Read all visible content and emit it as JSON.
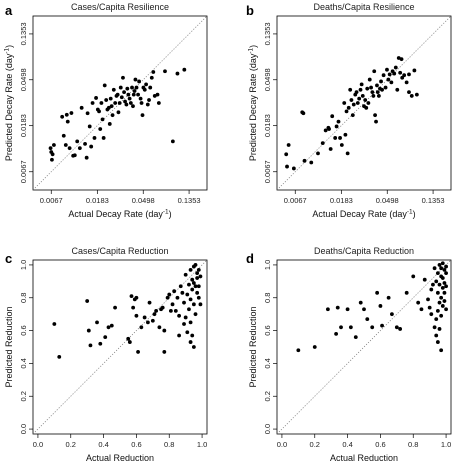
{
  "chart_data": [
    {
      "type": "scatter",
      "panel_label": "a",
      "title": "Cases/Capita Resilience",
      "xlabel": "Actual Decay Rate (day",
      "ylabel": "Predicted Decay Rate (day",
      "label_superscript": "-1",
      "label_suffix": ")",
      "scale": "log",
      "tick_values": [
        0.0067,
        0.0183,
        0.0498,
        0.1353
      ],
      "tick_labels": [
        "0.0067",
        "0.0183",
        "0.0498",
        "0.1353"
      ],
      "xlim": [
        0.0045,
        0.2
      ],
      "ylim": [
        0.0045,
        0.2
      ],
      "reference_line": "y = x",
      "points": [
        [
          0.0067,
          0.0103
        ],
        [
          0.0068,
          0.0087
        ],
        [
          0.0066,
          0.0112
        ],
        [
          0.0069,
          0.0098
        ],
        [
          0.0071,
          0.012
        ],
        [
          0.0085,
          0.0222
        ],
        [
          0.0088,
          0.0147
        ],
        [
          0.0092,
          0.012
        ],
        [
          0.0094,
          0.0232
        ],
        [
          0.0096,
          0.02
        ],
        [
          0.01,
          0.0112
        ],
        [
          0.0104,
          0.0241
        ],
        [
          0.0108,
          0.0095
        ],
        [
          0.0112,
          0.0096
        ],
        [
          0.0118,
          0.013
        ],
        [
          0.0125,
          0.0112
        ],
        [
          0.013,
          0.027
        ],
        [
          0.014,
          0.0123
        ],
        [
          0.0145,
          0.0091
        ],
        [
          0.0148,
          0.024
        ],
        [
          0.0155,
          0.018
        ],
        [
          0.016,
          0.0116
        ],
        [
          0.0165,
          0.03
        ],
        [
          0.0172,
          0.014
        ],
        [
          0.0178,
          0.0335
        ],
        [
          0.0185,
          0.026
        ],
        [
          0.019,
          0.025
        ],
        [
          0.0195,
          0.017
        ],
        [
          0.02,
          0.03
        ],
        [
          0.0205,
          0.021
        ],
        [
          0.021,
          0.014
        ],
        [
          0.0215,
          0.044
        ],
        [
          0.0222,
          0.032
        ],
        [
          0.0228,
          0.026
        ],
        [
          0.0235,
          0.027
        ],
        [
          0.024,
          0.019
        ],
        [
          0.0245,
          0.033
        ],
        [
          0.025,
          0.028
        ],
        [
          0.0255,
          0.023
        ],
        [
          0.0262,
          0.04
        ],
        [
          0.027,
          0.03
        ],
        [
          0.0278,
          0.035
        ],
        [
          0.0285,
          0.036
        ],
        [
          0.029,
          0.0245
        ],
        [
          0.0298,
          0.03
        ],
        [
          0.0305,
          0.042
        ],
        [
          0.0312,
          0.034
        ],
        [
          0.032,
          0.052
        ],
        [
          0.0328,
          0.038
        ],
        [
          0.0335,
          0.031
        ],
        [
          0.0345,
          0.029
        ],
        [
          0.0352,
          0.041
        ],
        [
          0.036,
          0.036
        ],
        [
          0.037,
          0.033
        ],
        [
          0.038,
          0.03
        ],
        [
          0.039,
          0.042
        ],
        [
          0.0398,
          0.028
        ],
        [
          0.0405,
          0.036
        ],
        [
          0.0412,
          0.039
        ],
        [
          0.042,
          0.05
        ],
        [
          0.043,
          0.042
        ],
        [
          0.0445,
          0.036
        ],
        [
          0.0455,
          0.048
        ],
        [
          0.047,
          0.033
        ],
        [
          0.048,
          0.03
        ],
        [
          0.049,
          0.023
        ],
        [
          0.05,
          0.042
        ],
        [
          0.0515,
          0.04
        ],
        [
          0.053,
          0.045
        ],
        [
          0.055,
          0.029
        ],
        [
          0.0565,
          0.032
        ],
        [
          0.058,
          0.042
        ],
        [
          0.06,
          0.052
        ],
        [
          0.062,
          0.059
        ],
        [
          0.064,
          0.035
        ],
        [
          0.068,
          0.036
        ],
        [
          0.07,
          0.03
        ],
        [
          0.08,
          0.06
        ],
        [
          0.095,
          0.013
        ],
        [
          0.105,
          0.057
        ],
        [
          0.122,
          0.062
        ]
      ]
    },
    {
      "type": "scatter",
      "panel_label": "b",
      "title": "Deaths/Capita Resilience",
      "xlabel": "Actual Decay Rate (day",
      "ylabel": "Predicted Decay Rate (day",
      "label_superscript": "-1",
      "label_suffix": ")",
      "scale": "log",
      "tick_values": [
        0.0067,
        0.0183,
        0.0498,
        0.1353
      ],
      "tick_labels": [
        "0.0067",
        "0.0183",
        "0.0498",
        "0.1353"
      ],
      "xlim": [
        0.0045,
        0.2
      ],
      "ylim": [
        0.0045,
        0.2
      ],
      "reference_line": "y = x",
      "points": [
        [
          0.0055,
          0.0098
        ],
        [
          0.0056,
          0.0075
        ],
        [
          0.0058,
          0.012
        ],
        [
          0.0065,
          0.0072
        ],
        [
          0.0078,
          0.0245
        ],
        [
          0.008,
          0.024
        ],
        [
          0.0082,
          0.0085
        ],
        [
          0.0095,
          0.0082
        ],
        [
          0.011,
          0.01
        ],
        [
          0.0122,
          0.0125
        ],
        [
          0.013,
          0.0165
        ],
        [
          0.0138,
          0.0175
        ],
        [
          0.014,
          0.017
        ],
        [
          0.0145,
          0.011
        ],
        [
          0.015,
          0.0225
        ],
        [
          0.016,
          0.014
        ],
        [
          0.0165,
          0.018
        ],
        [
          0.0172,
          0.02
        ],
        [
          0.0178,
          0.014
        ],
        [
          0.0185,
          0.012
        ],
        [
          0.0195,
          0.03
        ],
        [
          0.02,
          0.015
        ],
        [
          0.0205,
          0.025
        ],
        [
          0.021,
          0.01
        ],
        [
          0.0215,
          0.027
        ],
        [
          0.0222,
          0.04
        ],
        [
          0.0228,
          0.032
        ],
        [
          0.0235,
          0.023
        ],
        [
          0.024,
          0.029
        ],
        [
          0.0248,
          0.036
        ],
        [
          0.0255,
          0.038
        ],
        [
          0.0262,
          0.03
        ],
        [
          0.027,
          0.033
        ],
        [
          0.0278,
          0.04
        ],
        [
          0.0285,
          0.045
        ],
        [
          0.0292,
          0.035
        ],
        [
          0.03,
          0.028
        ],
        [
          0.0308,
          0.032
        ],
        [
          0.0315,
          0.027
        ],
        [
          0.0322,
          0.041
        ],
        [
          0.033,
          0.03
        ],
        [
          0.034,
          0.05
        ],
        [
          0.035,
          0.042
        ],
        [
          0.036,
          0.038
        ],
        [
          0.0368,
          0.035
        ],
        [
          0.0375,
          0.06
        ],
        [
          0.0382,
          0.023
        ],
        [
          0.039,
          0.02
        ],
        [
          0.0398,
          0.044
        ],
        [
          0.0405,
          0.038
        ],
        [
          0.0415,
          0.035
        ],
        [
          0.0425,
          0.041
        ],
        [
          0.0435,
          0.048
        ],
        [
          0.0445,
          0.04
        ],
        [
          0.046,
          0.055
        ],
        [
          0.048,
          0.042
        ],
        [
          0.0495,
          0.062
        ],
        [
          0.051,
          0.05
        ],
        [
          0.0525,
          0.056
        ],
        [
          0.0545,
          0.047
        ],
        [
          0.056,
          0.06
        ],
        [
          0.058,
          0.057
        ],
        [
          0.06,
          0.065
        ],
        [
          0.062,
          0.04
        ],
        [
          0.064,
          0.08
        ],
        [
          0.066,
          0.058
        ],
        [
          0.069,
          0.052
        ],
        [
          0.072,
          0.055
        ],
        [
          0.076,
          0.047
        ],
        [
          0.08,
          0.038
        ],
        [
          0.085,
          0.035
        ],
        [
          0.095,
          0.036
        ],
        [
          0.08,
          0.056
        ],
        [
          0.09,
          0.061
        ],
        [
          0.068,
          0.078
        ]
      ]
    },
    {
      "type": "scatter",
      "panel_label": "c",
      "title": "Cases/Capita Reduction",
      "xlabel": "Actual Reduction",
      "ylabel": "Predicted Reduction",
      "scale": "linear",
      "tick_values": [
        0.0,
        0.2,
        0.4,
        0.6,
        0.8,
        1.0
      ],
      "tick_labels": [
        "0.0",
        "0.2",
        "0.4",
        "0.6",
        "0.8",
        "1.0"
      ],
      "xlim": [
        -0.03,
        1.03
      ],
      "ylim": [
        -0.03,
        1.03
      ],
      "reference_line": "y = x",
      "points": [
        [
          0.1,
          0.64
        ],
        [
          0.13,
          0.44
        ],
        [
          0.3,
          0.78
        ],
        [
          0.31,
          0.6
        ],
        [
          0.32,
          0.51
        ],
        [
          0.36,
          0.65
        ],
        [
          0.38,
          0.52
        ],
        [
          0.41,
          0.56
        ],
        [
          0.43,
          0.62
        ],
        [
          0.45,
          0.63
        ],
        [
          0.47,
          0.74
        ],
        [
          0.55,
          0.55
        ],
        [
          0.56,
          0.53
        ],
        [
          0.57,
          0.81
        ],
        [
          0.58,
          0.74
        ],
        [
          0.59,
          0.79
        ],
        [
          0.6,
          0.8
        ],
        [
          0.6,
          0.69
        ],
        [
          0.61,
          0.47
        ],
        [
          0.63,
          0.62
        ],
        [
          0.65,
          0.68
        ],
        [
          0.67,
          0.65
        ],
        [
          0.68,
          0.77
        ],
        [
          0.7,
          0.66
        ],
        [
          0.71,
          0.7
        ],
        [
          0.72,
          0.72
        ],
        [
          0.74,
          0.62
        ],
        [
          0.75,
          0.73
        ],
        [
          0.76,
          0.74
        ],
        [
          0.77,
          0.6
        ],
        [
          0.77,
          0.47
        ],
        [
          0.79,
          0.8
        ],
        [
          0.8,
          0.82
        ],
        [
          0.81,
          0.72
        ],
        [
          0.82,
          0.76
        ],
        [
          0.83,
          0.84
        ],
        [
          0.84,
          0.72
        ],
        [
          0.85,
          0.8
        ],
        [
          0.86,
          0.69
        ],
        [
          0.86,
          0.57
        ],
        [
          0.87,
          0.87
        ],
        [
          0.88,
          0.83
        ],
        [
          0.89,
          0.64
        ],
        [
          0.89,
          0.77
        ],
        [
          0.9,
          0.94
        ],
        [
          0.9,
          0.68
        ],
        [
          0.91,
          0.82
        ],
        [
          0.91,
          0.59
        ],
        [
          0.92,
          0.88
        ],
        [
          0.92,
          0.73
        ],
        [
          0.93,
          0.97
        ],
        [
          0.93,
          0.79
        ],
        [
          0.93,
          0.65
        ],
        [
          0.94,
          0.91
        ],
        [
          0.94,
          0.85
        ],
        [
          0.94,
          0.57
        ],
        [
          0.95,
          0.99
        ],
        [
          0.95,
          0.89
        ],
        [
          0.95,
          0.76
        ],
        [
          0.96,
          1.0
        ],
        [
          0.96,
          0.87
        ],
        [
          0.96,
          0.7
        ],
        [
          0.97,
          0.95
        ],
        [
          0.97,
          0.83
        ],
        [
          0.97,
          0.92
        ],
        [
          0.98,
          0.8
        ],
        [
          0.98,
          0.97
        ],
        [
          0.98,
          0.87
        ],
        [
          0.99,
          0.93
        ],
        [
          0.99,
          0.76
        ],
        [
          0.95,
          0.5
        ],
        [
          0.93,
          0.53
        ]
      ]
    },
    {
      "type": "scatter",
      "panel_label": "d",
      "title": "Deaths/Capita Reduction",
      "xlabel": "Actual Reduction",
      "ylabel": "Predicted Reduction",
      "scale": "linear",
      "tick_values": [
        0.0,
        0.2,
        0.4,
        0.6,
        0.8,
        1.0
      ],
      "tick_labels": [
        "0.0",
        "0.2",
        "0.4",
        "0.6",
        "0.8",
        "1.0"
      ],
      "xlim": [
        -0.03,
        1.03
      ],
      "ylim": [
        -0.03,
        1.03
      ],
      "reference_line": "y = x",
      "points": [
        [
          0.1,
          0.48
        ],
        [
          0.2,
          0.5
        ],
        [
          0.28,
          0.73
        ],
        [
          0.33,
          0.58
        ],
        [
          0.34,
          0.74
        ],
        [
          0.36,
          0.62
        ],
        [
          0.4,
          0.73
        ],
        [
          0.42,
          0.62
        ],
        [
          0.45,
          0.56
        ],
        [
          0.48,
          0.77
        ],
        [
          0.5,
          0.73
        ],
        [
          0.52,
          0.67
        ],
        [
          0.55,
          0.62
        ],
        [
          0.58,
          0.83
        ],
        [
          0.6,
          0.75
        ],
        [
          0.61,
          0.63
        ],
        [
          0.65,
          0.8
        ],
        [
          0.67,
          0.7
        ],
        [
          0.7,
          0.62
        ],
        [
          0.72,
          0.61
        ],
        [
          0.76,
          0.83
        ],
        [
          0.8,
          0.93
        ],
        [
          0.83,
          0.77
        ],
        [
          0.85,
          0.73
        ],
        [
          0.87,
          0.91
        ],
        [
          0.89,
          0.79
        ],
        [
          0.9,
          0.74
        ],
        [
          0.91,
          0.7
        ],
        [
          0.91,
          0.85
        ],
        [
          0.92,
          0.88
        ],
        [
          0.93,
          0.98
        ],
        [
          0.93,
          0.62
        ],
        [
          0.94,
          0.9
        ],
        [
          0.94,
          0.67
        ],
        [
          0.95,
          0.95
        ],
        [
          0.95,
          0.83
        ],
        [
          0.95,
          0.72
        ],
        [
          0.96,
          1.0
        ],
        [
          0.96,
          0.88
        ],
        [
          0.96,
          0.77
        ],
        [
          0.97,
          0.93
        ],
        [
          0.97,
          0.8
        ],
        [
          0.97,
          0.69
        ],
        [
          0.97,
          0.98
        ],
        [
          0.98,
          0.86
        ],
        [
          0.98,
          1.01
        ],
        [
          0.98,
          0.75
        ],
        [
          0.98,
          0.92
        ],
        [
          0.99,
          0.97
        ],
        [
          0.99,
          0.83
        ],
        [
          0.99,
          0.89
        ],
        [
          0.99,
          0.78
        ],
        [
          1.0,
          0.95
        ],
        [
          1.0,
          0.87
        ],
        [
          1.0,
          0.99
        ],
        [
          0.96,
          0.61
        ],
        [
          0.95,
          0.53
        ],
        [
          0.97,
          0.48
        ],
        [
          0.94,
          0.57
        ],
        [
          1.0,
          0.73
        ]
      ]
    }
  ]
}
